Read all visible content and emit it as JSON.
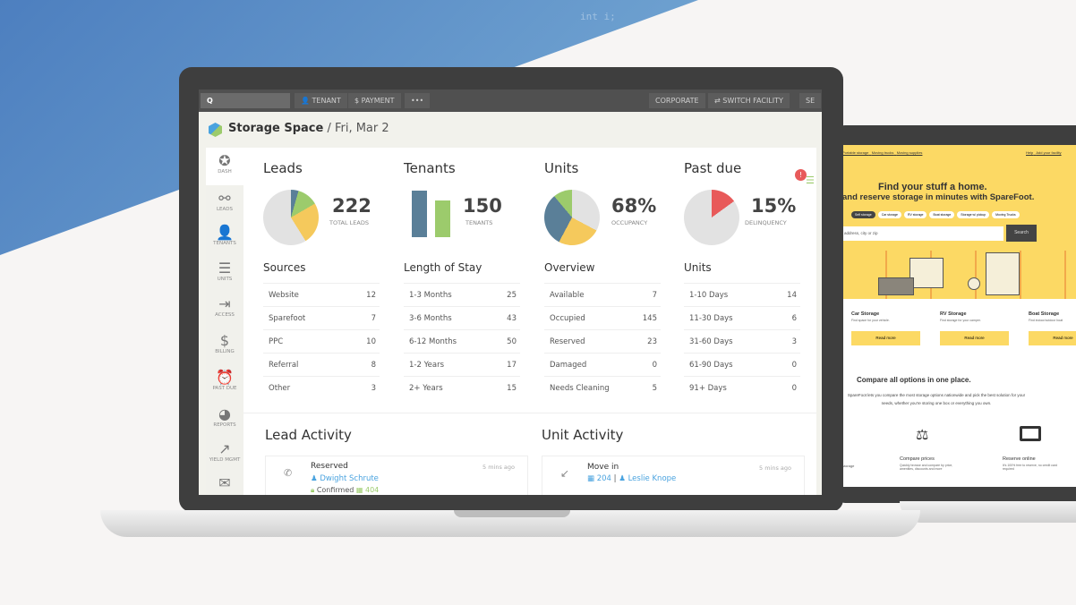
{
  "background": {
    "code_snippet": "int i;"
  },
  "topbar": {
    "search": "",
    "tenant": "TENANT",
    "payment": "PAYMENT",
    "more": "•••",
    "corporate": "CORPORATE",
    "switch_facility": "SWITCH FACILITY",
    "se": "SE"
  },
  "header": {
    "brand": "Storage Space",
    "date": "/ Fri, Mar 2"
  },
  "sidebar": [
    {
      "label": "DASH",
      "icon": "star"
    },
    {
      "label": "LEADS",
      "icon": "nodes"
    },
    {
      "label": "TENANTS",
      "icon": "user"
    },
    {
      "label": "UNITS",
      "icon": "storage"
    },
    {
      "label": "ACCESS",
      "icon": "sign-in"
    },
    {
      "label": "BILLING",
      "icon": "dollar"
    },
    {
      "label": "PAST DUE",
      "icon": "alarm"
    },
    {
      "label": "REPORTS",
      "icon": "pie"
    },
    {
      "label": "YIELD MGMT",
      "icon": "trend"
    },
    {
      "label": "",
      "icon": "mail"
    }
  ],
  "alert_badge": "!",
  "stats": [
    {
      "title": "Leads",
      "value": "222",
      "sub": "TOTAL LEADS"
    },
    {
      "title": "Tenants",
      "value": "150",
      "sub": "TENANTS"
    },
    {
      "title": "Units",
      "value": "68%",
      "sub": "OCCUPANCY",
      "occupancy_pct": 68
    },
    {
      "title": "Past due",
      "value": "15%",
      "sub": "DELINQUENCY",
      "delinquency_pct": 15
    }
  ],
  "colors": {
    "blue": "#5a7f98",
    "green": "#9ccb6c",
    "yellow": "#f5c95c",
    "grey": "#e2e2e2",
    "red": "#e85a5a",
    "link": "#4aa3df"
  },
  "lists": [
    {
      "title": "Sources",
      "rows": [
        [
          "Website",
          "12"
        ],
        [
          "Sparefoot",
          "7"
        ],
        [
          "PPC",
          "10"
        ],
        [
          "Referral",
          "8"
        ],
        [
          "Other",
          "3"
        ]
      ]
    },
    {
      "title": "Length of Stay",
      "rows": [
        [
          "1-3 Months",
          "25"
        ],
        [
          "3-6 Months",
          "43"
        ],
        [
          "6-12 Months",
          "50"
        ],
        [
          "1-2 Years",
          "17"
        ],
        [
          "2+ Years",
          "15"
        ]
      ]
    },
    {
      "title": "Overview",
      "rows": [
        [
          "Available",
          "7"
        ],
        [
          "Occupied",
          "145"
        ],
        [
          "Reserved",
          "23"
        ],
        [
          "Damaged",
          "0"
        ],
        [
          "Needs Cleaning",
          "5"
        ]
      ]
    },
    {
      "title": "Units",
      "rows": [
        [
          "1-10 Days",
          "14"
        ],
        [
          "11-30 Days",
          "6"
        ],
        [
          "31-60 Days",
          "3"
        ],
        [
          "61-90 Days",
          "0"
        ],
        [
          "91+ Days",
          "0"
        ]
      ]
    }
  ],
  "lead_activity": {
    "title": "Lead Activity",
    "item": {
      "status": "Reserved",
      "name": "Dwight Schrute",
      "state": "Confirmed",
      "unit": "404",
      "time": "5 mins ago"
    }
  },
  "unit_activity": {
    "title": "Unit Activity",
    "item": {
      "status": "Move in",
      "unit": "204",
      "name": "Leslie Knope",
      "time": "5 mins ago"
    }
  },
  "sparefoot": {
    "nav": [
      "Portable storage",
      "Moving trucks",
      "Moving supplies"
    ],
    "nav_right": [
      "Help",
      "Add your facility"
    ],
    "headline": "Find your stuff a home.",
    "subheadline": "and reserve storage in minutes with SpareFoot.",
    "chips": [
      "Self storage",
      "Car storage",
      "RV storage",
      "Boat storage",
      "Storage w/ pickup",
      "Moving Trucks"
    ],
    "search_placeholder": "address, city or zip",
    "search_button": "Search",
    "cards": [
      {
        "title": "Car Storage",
        "desc": "Find space for your vehicle.",
        "btn": "Read more"
      },
      {
        "title": "RV Storage",
        "desc": "Find storage for your camper.",
        "btn": "Read more"
      },
      {
        "title": "Boat Storage",
        "desc": "Find indoor/outdoor boat",
        "btn": "Read more"
      }
    ],
    "compare_title": "Compare all options in one place.",
    "compare_text": "SpareFoot lets you compare the most storage options nationwide and pick the best solution for your needs, whether you're storing one box or everything you own.",
    "features": [
      {
        "title": "",
        "desc": "storage"
      },
      {
        "title": "Compare prices",
        "desc": "Quickly browse and compare by price, amenities, discounts and more"
      },
      {
        "title": "Reserve online",
        "desc": "It's 100% free to reserve, no credit card required"
      }
    ]
  }
}
